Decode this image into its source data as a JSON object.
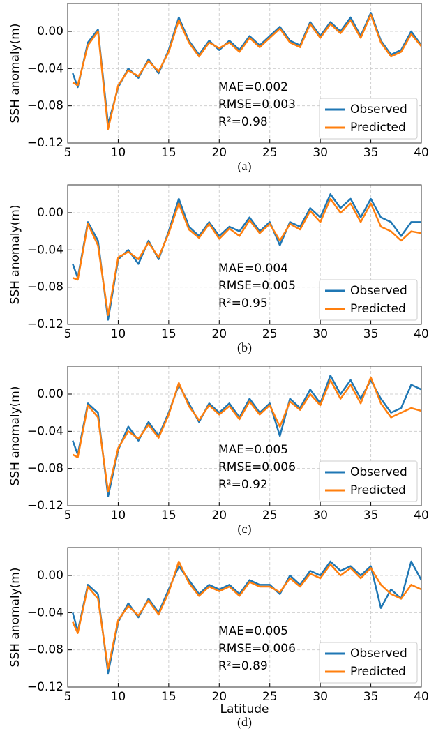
{
  "chart_data": [
    {
      "type": "line",
      "ylabel": "SSH anomaly(m)",
      "caption": "(a)",
      "annotations": [
        "MAE=0.002",
        "RMSE=0.003",
        "R²=0.98"
      ],
      "x": [
        5.5,
        6,
        7,
        8,
        9,
        10,
        11,
        12,
        13,
        14,
        15,
        16,
        17,
        18,
        19,
        20,
        21,
        22,
        23,
        24,
        25,
        26,
        27,
        28,
        29,
        30,
        31,
        32,
        33,
        34,
        35,
        36,
        37,
        38,
        39,
        40
      ],
      "series": [
        {
          "name": "Observed",
          "color": "#1f77b4",
          "values": [
            -0.045,
            -0.06,
            -0.012,
            0.002,
            -0.1,
            -0.06,
            -0.04,
            -0.05,
            -0.03,
            -0.045,
            -0.02,
            0.015,
            -0.01,
            -0.025,
            -0.01,
            -0.02,
            -0.01,
            -0.02,
            -0.005,
            -0.015,
            -0.005,
            0.005,
            -0.01,
            -0.015,
            0.01,
            -0.005,
            0.01,
            0.0,
            0.015,
            -0.005,
            0.02,
            -0.01,
            -0.025,
            -0.02,
            0.0,
            -0.015
          ]
        },
        {
          "name": "Predicted",
          "color": "#ff7f0e",
          "values": [
            -0.055,
            -0.058,
            -0.015,
            0.0,
            -0.105,
            -0.058,
            -0.042,
            -0.048,
            -0.032,
            -0.043,
            -0.022,
            0.012,
            -0.012,
            -0.027,
            -0.012,
            -0.018,
            -0.012,
            -0.022,
            -0.007,
            -0.017,
            -0.007,
            0.003,
            -0.012,
            -0.017,
            0.008,
            -0.007,
            0.008,
            -0.002,
            0.012,
            -0.007,
            0.018,
            -0.012,
            -0.027,
            -0.022,
            -0.003,
            -0.016
          ]
        }
      ],
      "xlim": [
        5,
        40
      ],
      "xticks": [
        5,
        10,
        15,
        20,
        25,
        30,
        35,
        40
      ],
      "ylim": [
        -0.12,
        0.03
      ],
      "yticks": [
        {
          "value": 0,
          "label": "0.00"
        },
        {
          "value": -0.04,
          "label": "−0.04"
        },
        {
          "value": -0.08,
          "label": "−0.08"
        },
        {
          "value": -0.12,
          "label": "−0.12"
        }
      ],
      "grid": true,
      "legend": "lower right"
    },
    {
      "type": "line",
      "ylabel": "SSH anomaly(m)",
      "caption": "(b)",
      "annotations": [
        "MAE=0.004",
        "RMSE=0.005",
        "R²=0.95"
      ],
      "x": [
        5.5,
        6,
        7,
        8,
        9,
        10,
        11,
        12,
        13,
        14,
        15,
        16,
        17,
        18,
        19,
        20,
        21,
        22,
        23,
        24,
        25,
        26,
        27,
        28,
        29,
        30,
        31,
        32,
        33,
        34,
        35,
        36,
        37,
        38,
        39,
        40
      ],
      "series": [
        {
          "name": "Observed",
          "color": "#1f77b4",
          "values": [
            -0.055,
            -0.07,
            -0.01,
            -0.03,
            -0.115,
            -0.05,
            -0.04,
            -0.055,
            -0.03,
            -0.05,
            -0.02,
            0.015,
            -0.015,
            -0.025,
            -0.01,
            -0.025,
            -0.015,
            -0.02,
            -0.005,
            -0.02,
            -0.01,
            -0.035,
            -0.01,
            -0.015,
            0.005,
            -0.005,
            0.02,
            0.005,
            0.015,
            -0.005,
            0.015,
            -0.005,
            -0.01,
            -0.025,
            -0.01,
            -0.01
          ]
        },
        {
          "name": "Predicted",
          "color": "#ff7f0e",
          "values": [
            -0.07,
            -0.072,
            -0.012,
            -0.035,
            -0.11,
            -0.048,
            -0.042,
            -0.05,
            -0.032,
            -0.048,
            -0.022,
            0.01,
            -0.018,
            -0.027,
            -0.012,
            -0.028,
            -0.017,
            -0.025,
            -0.008,
            -0.022,
            -0.012,
            -0.03,
            -0.012,
            -0.018,
            0.002,
            -0.01,
            0.015,
            0.0,
            0.01,
            -0.01,
            0.01,
            -0.015,
            -0.02,
            -0.03,
            -0.02,
            -0.022
          ]
        }
      ],
      "xlim": [
        5,
        40
      ],
      "xticks": [
        5,
        10,
        15,
        20,
        25,
        30,
        35,
        40
      ],
      "ylim": [
        -0.12,
        0.03
      ],
      "yticks": [
        {
          "value": 0,
          "label": "0.00"
        },
        {
          "value": -0.04,
          "label": "−0.04"
        },
        {
          "value": -0.08,
          "label": "−0.08"
        },
        {
          "value": -0.12,
          "label": "−0.12"
        }
      ],
      "grid": true,
      "legend": "lower right"
    },
    {
      "type": "line",
      "ylabel": "SSH anomaly(m)",
      "caption": "(c)",
      "annotations": [
        "MAE=0.005",
        "RMSE=0.006",
        "R²=0.92"
      ],
      "x": [
        5.5,
        6,
        7,
        8,
        9,
        10,
        11,
        12,
        13,
        14,
        15,
        16,
        17,
        18,
        19,
        20,
        21,
        22,
        23,
        24,
        25,
        26,
        27,
        28,
        29,
        30,
        31,
        32,
        33,
        34,
        35,
        36,
        37,
        38,
        39,
        40
      ],
      "series": [
        {
          "name": "Observed",
          "color": "#1f77b4",
          "values": [
            -0.05,
            -0.065,
            -0.01,
            -0.02,
            -0.11,
            -0.06,
            -0.035,
            -0.05,
            -0.03,
            -0.045,
            -0.02,
            0.01,
            -0.01,
            -0.03,
            -0.01,
            -0.02,
            -0.01,
            -0.025,
            -0.005,
            -0.02,
            -0.01,
            -0.045,
            -0.005,
            -0.015,
            0.005,
            -0.01,
            0.02,
            0.0,
            0.015,
            -0.005,
            0.015,
            -0.005,
            -0.02,
            -0.015,
            0.01,
            0.005
          ]
        },
        {
          "name": "Predicted",
          "color": "#ff7f0e",
          "values": [
            -0.065,
            -0.068,
            -0.012,
            -0.025,
            -0.105,
            -0.058,
            -0.04,
            -0.048,
            -0.033,
            -0.047,
            -0.022,
            0.012,
            -0.013,
            -0.028,
            -0.012,
            -0.022,
            -0.013,
            -0.027,
            -0.008,
            -0.022,
            -0.012,
            -0.035,
            -0.008,
            -0.017,
            0.0,
            -0.012,
            0.015,
            -0.005,
            0.01,
            -0.01,
            0.018,
            -0.01,
            -0.025,
            -0.02,
            -0.015,
            -0.018
          ]
        }
      ],
      "xlim": [
        5,
        40
      ],
      "xticks": [
        5,
        10,
        15,
        20,
        25,
        30,
        35,
        40
      ],
      "ylim": [
        -0.12,
        0.03
      ],
      "yticks": [
        {
          "value": 0,
          "label": "0.00"
        },
        {
          "value": -0.04,
          "label": "−0.04"
        },
        {
          "value": -0.08,
          "label": "−0.08"
        },
        {
          "value": -0.12,
          "label": "−0.12"
        }
      ],
      "grid": true,
      "legend": "lower right"
    },
    {
      "type": "line",
      "ylabel": "SSH anomaly(m)",
      "xlabel": "Latitude",
      "caption": "(d)",
      "annotations": [
        "MAE=0.005",
        "RMSE=0.006",
        "R²=0.89"
      ],
      "x": [
        5.5,
        6,
        7,
        8,
        9,
        10,
        11,
        12,
        13,
        14,
        15,
        16,
        17,
        18,
        19,
        20,
        21,
        22,
        23,
        24,
        25,
        26,
        27,
        28,
        29,
        30,
        31,
        32,
        33,
        34,
        35,
        36,
        37,
        38,
        39,
        40
      ],
      "series": [
        {
          "name": "Observed",
          "color": "#1f77b4",
          "values": [
            -0.04,
            -0.06,
            -0.01,
            -0.02,
            -0.105,
            -0.05,
            -0.03,
            -0.045,
            -0.025,
            -0.04,
            -0.015,
            0.01,
            -0.005,
            -0.02,
            -0.01,
            -0.015,
            -0.01,
            -0.02,
            -0.005,
            -0.01,
            -0.01,
            -0.02,
            0.0,
            -0.01,
            0.005,
            0.0,
            0.015,
            0.005,
            0.01,
            0.0,
            0.01,
            -0.035,
            -0.015,
            -0.025,
            0.015,
            -0.005
          ]
        },
        {
          "name": "Predicted",
          "color": "#ff7f0e",
          "values": [
            -0.05,
            -0.062,
            -0.012,
            -0.025,
            -0.1,
            -0.048,
            -0.033,
            -0.043,
            -0.027,
            -0.042,
            -0.018,
            0.015,
            -0.008,
            -0.022,
            -0.012,
            -0.017,
            -0.012,
            -0.022,
            -0.007,
            -0.012,
            -0.012,
            -0.018,
            -0.003,
            -0.012,
            0.002,
            -0.003,
            0.012,
            0.0,
            0.008,
            -0.003,
            0.008,
            -0.01,
            -0.02,
            -0.025,
            -0.01,
            -0.015
          ]
        }
      ],
      "xlim": [
        5,
        40
      ],
      "xticks": [
        5,
        10,
        15,
        20,
        25,
        30,
        35,
        40
      ],
      "ylim": [
        -0.12,
        0.03
      ],
      "yticks": [
        {
          "value": 0,
          "label": "0.00"
        },
        {
          "value": -0.04,
          "label": "−0.04"
        },
        {
          "value": -0.08,
          "label": "−0.08"
        },
        {
          "value": -0.12,
          "label": "−0.12"
        }
      ],
      "grid": true,
      "legend": "lower right"
    }
  ]
}
